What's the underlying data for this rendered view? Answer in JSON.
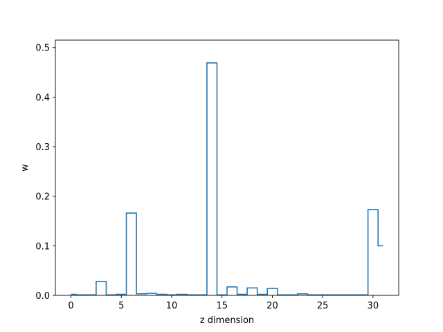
{
  "chart_data": {
    "type": "step",
    "title": "",
    "xlabel": "z dimension",
    "ylabel": "w",
    "xlim": [
      -1.55,
      32.55
    ],
    "ylim": [
      0,
      0.515
    ],
    "xticks": [
      0,
      5,
      10,
      15,
      20,
      25,
      30
    ],
    "yticks": [
      0.0,
      0.1,
      0.2,
      0.3,
      0.4,
      0.5
    ],
    "ytick_labels": [
      "0.0",
      "0.1",
      "0.2",
      "0.3",
      "0.4",
      "0.5"
    ],
    "step_where": "mid",
    "color": "#1f77b4",
    "grid": false,
    "x": [
      0,
      1,
      2,
      3,
      4,
      5,
      6,
      7,
      8,
      9,
      10,
      11,
      12,
      13,
      14,
      15,
      16,
      17,
      18,
      19,
      20,
      21,
      22,
      23,
      24,
      25,
      26,
      27,
      28,
      29,
      30,
      31
    ],
    "values": [
      0.002,
      0.001,
      0.001,
      0.028,
      0.001,
      0.002,
      0.166,
      0.003,
      0.004,
      0.002,
      0.001,
      0.002,
      0.001,
      0.001,
      0.469,
      0.001,
      0.017,
      0.002,
      0.015,
      0.002,
      0.014,
      0.001,
      0.001,
      0.003,
      0.001,
      0.001,
      0.001,
      0.001,
      0.001,
      0.001,
      0.173,
      0.1
    ]
  }
}
